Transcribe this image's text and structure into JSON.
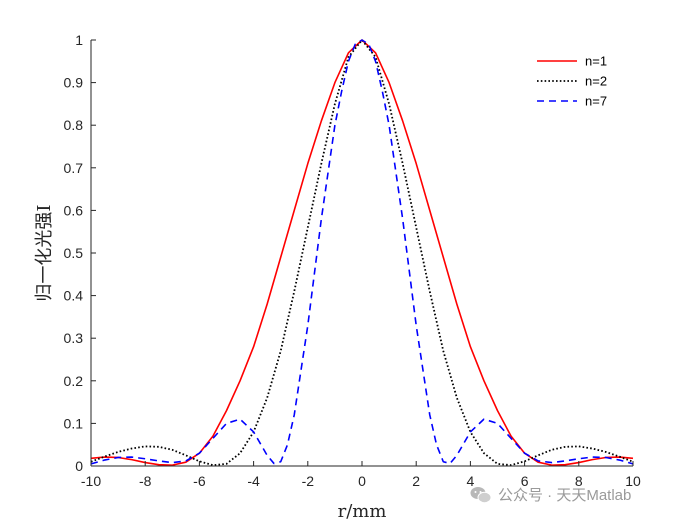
{
  "chart_data": {
    "type": "line",
    "xlabel": "r/mm",
    "ylabel": "归一化光强I",
    "xlim": [
      -10,
      10
    ],
    "ylim": [
      0,
      1
    ],
    "xticks": [
      "-10",
      "-8",
      "-6",
      "-4",
      "-2",
      "0",
      "2",
      "4",
      "6",
      "8",
      "10"
    ],
    "yticks": [
      "0",
      "0.1",
      "0.2",
      "0.3",
      "0.4",
      "0.5",
      "0.6",
      "0.7",
      "0.8",
      "0.9",
      "1"
    ],
    "legend_position": "top-right",
    "grid": false,
    "series": [
      {
        "name": "n=1",
        "color": "#ff0000",
        "style": "solid",
        "x": [
          -10,
          -9.5,
          -9,
          -8.5,
          -8,
          -7.5,
          -7,
          -6.5,
          -6,
          -5.5,
          -5,
          -4.5,
          -4,
          -3.5,
          -3,
          -2.5,
          -2,
          -1.5,
          -1,
          -0.5,
          0,
          0.5,
          1,
          1.5,
          2,
          2.5,
          3,
          3.5,
          4,
          4.5,
          5,
          5.5,
          6,
          6.5,
          7,
          7.5,
          8,
          8.5,
          9,
          9.5,
          10
        ],
        "y": [
          0.018,
          0.021,
          0.02,
          0.015,
          0.008,
          0.003,
          0.002,
          0.009,
          0.03,
          0.07,
          0.13,
          0.2,
          0.28,
          0.38,
          0.49,
          0.6,
          0.71,
          0.81,
          0.9,
          0.97,
          1.0,
          0.97,
          0.9,
          0.81,
          0.71,
          0.6,
          0.49,
          0.38,
          0.28,
          0.2,
          0.13,
          0.07,
          0.03,
          0.009,
          0.002,
          0.003,
          0.008,
          0.015,
          0.02,
          0.021,
          0.018
        ]
      },
      {
        "name": "n=2",
        "color": "#000000",
        "style": "dotted",
        "x": [
          -10,
          -9.5,
          -9,
          -8.5,
          -8,
          -7.5,
          -7,
          -6.5,
          -6,
          -5.5,
          -5,
          -4.5,
          -4,
          -3.5,
          -3,
          -2.5,
          -2,
          -1.5,
          -1,
          -0.5,
          0,
          0.5,
          1,
          1.5,
          2,
          2.5,
          3,
          3.5,
          4,
          4.5,
          5,
          5.5,
          6,
          6.5,
          7,
          7.5,
          8,
          8.5,
          9,
          9.5,
          10
        ],
        "y": [
          0.01,
          0.022,
          0.033,
          0.041,
          0.046,
          0.045,
          0.038,
          0.025,
          0.011,
          0.002,
          0.005,
          0.03,
          0.08,
          0.16,
          0.27,
          0.41,
          0.56,
          0.71,
          0.85,
          0.96,
          1.0,
          0.96,
          0.85,
          0.71,
          0.56,
          0.41,
          0.27,
          0.16,
          0.08,
          0.03,
          0.005,
          0.002,
          0.011,
          0.025,
          0.038,
          0.045,
          0.046,
          0.041,
          0.033,
          0.022,
          0.01
        ]
      },
      {
        "name": "n=7",
        "color": "#0000ff",
        "style": "dashed",
        "x": [
          -10,
          -9.5,
          -9,
          -8.5,
          -8,
          -7.5,
          -7,
          -6.5,
          -6,
          -5.5,
          -5,
          -4.5,
          -4,
          -3.5,
          -3.25,
          -3,
          -2.75,
          -2.5,
          -2,
          -1.5,
          -1,
          -0.75,
          -0.5,
          -0.25,
          0,
          0.25,
          0.5,
          0.75,
          1,
          1.5,
          2,
          2.5,
          2.75,
          3,
          3.25,
          3.5,
          4,
          4.5,
          5,
          5.5,
          6,
          6.5,
          7,
          7.5,
          8,
          8.5,
          9,
          9.5,
          10
        ],
        "y": [
          0.005,
          0.014,
          0.02,
          0.021,
          0.017,
          0.012,
          0.008,
          0.012,
          0.03,
          0.065,
          0.1,
          0.11,
          0.08,
          0.025,
          0.006,
          0.01,
          0.05,
          0.12,
          0.33,
          0.58,
          0.8,
          0.88,
          0.95,
          0.99,
          1.0,
          0.99,
          0.95,
          0.88,
          0.8,
          0.58,
          0.33,
          0.12,
          0.05,
          0.01,
          0.006,
          0.025,
          0.08,
          0.11,
          0.1,
          0.065,
          0.03,
          0.012,
          0.008,
          0.012,
          0.017,
          0.021,
          0.02,
          0.014,
          0.005
        ]
      }
    ]
  },
  "watermark": {
    "text": "公众号 · 天天Matlab",
    "icon": "wechat-icon"
  }
}
